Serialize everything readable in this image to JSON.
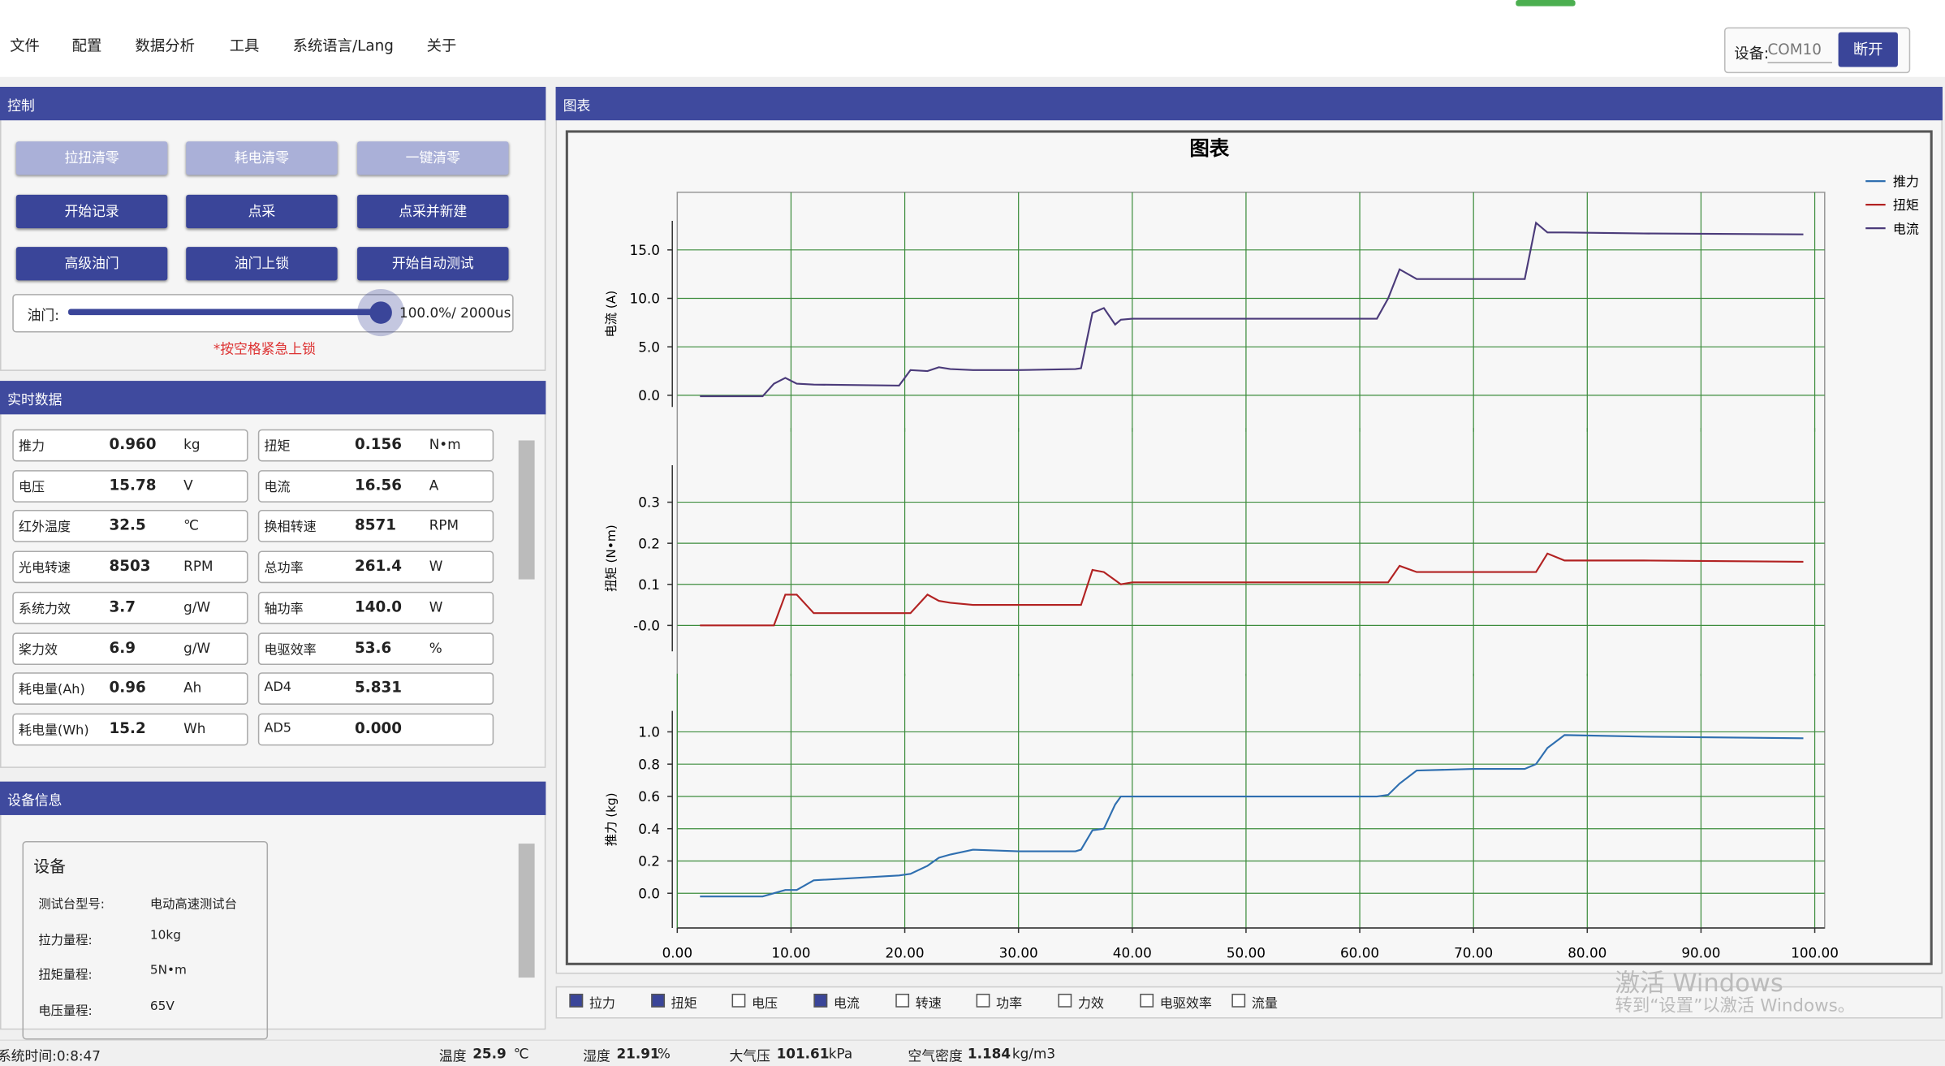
{
  "window": {
    "menu": [
      "文件",
      "配置",
      "数据分析",
      "工具",
      "系统语言/Lang",
      "关于"
    ],
    "device_label": "设备:",
    "port": "COM10",
    "disconnect": "断开"
  },
  "control": {
    "title": "控制",
    "buttons": [
      [
        {
          "text": "拉扭清零",
          "enabled": false
        },
        {
          "text": "耗电清零",
          "enabled": false
        },
        {
          "text": "一键清零",
          "enabled": false
        }
      ],
      [
        {
          "text": "开始记录",
          "enabled": true
        },
        {
          "text": "点采",
          "enabled": true
        },
        {
          "text": "点采并新建",
          "enabled": true
        }
      ],
      [
        {
          "text": "高级油门",
          "enabled": true
        },
        {
          "text": "油门上锁",
          "enabled": true
        },
        {
          "text": "开始自动测试",
          "enabled": true
        }
      ]
    ],
    "throttle_label": "油门:",
    "throttle_value": "100.0%/  2000us",
    "hint": "*按空格紧急上锁"
  },
  "realtime": {
    "title": "实时数据",
    "rows": [
      [
        {
          "label": "推力",
          "value": "0.960",
          "unit": "kg"
        },
        {
          "label": "扭矩",
          "value": "0.156",
          "unit": "N•m"
        }
      ],
      [
        {
          "label": "电压",
          "value": "15.78",
          "unit": "V"
        },
        {
          "label": "电流",
          "value": "16.56",
          "unit": "A"
        }
      ],
      [
        {
          "label": "红外温度",
          "value": "32.5",
          "unit": "℃"
        },
        {
          "label": "换相转速",
          "value": "8571",
          "unit": "RPM"
        }
      ],
      [
        {
          "label": "光电转速",
          "value": "8503",
          "unit": "RPM"
        },
        {
          "label": "总功率",
          "value": "261.4",
          "unit": "W"
        }
      ],
      [
        {
          "label": "系统力效",
          "value": "3.7",
          "unit": "g/W"
        },
        {
          "label": "轴功率",
          "value": "140.0",
          "unit": "W"
        }
      ],
      [
        {
          "label": "桨力效",
          "value": "6.9",
          "unit": "g/W"
        },
        {
          "label": "电驱效率",
          "value": "53.6",
          "unit": "%"
        }
      ],
      [
        {
          "label": "耗电量(Ah)",
          "value": "0.96",
          "unit": "Ah"
        },
        {
          "label": "AD4",
          "value": "5.831"
        }
      ],
      [
        {
          "label": "耗电量(Wh)",
          "value": "15.2",
          "unit": "Wh"
        },
        {
          "label": "AD5",
          "value": "0.000"
        }
      ]
    ]
  },
  "device_info": {
    "title": "设备信息",
    "group": "设备",
    "rows": [
      [
        "测试台型号:",
        "电动高速测试台"
      ],
      [
        "拉力量程:",
        "10kg"
      ],
      [
        "扭矩量程:",
        "5N•m"
      ],
      [
        "电压量程:",
        "65V"
      ]
    ]
  },
  "chart_panel": {
    "title": "图表"
  },
  "chart_data": [
    {
      "type": "line",
      "title": "图表",
      "ylabel": "电流 (A)",
      "x": [
        2,
        7.5,
        8.5,
        9.5,
        10.5,
        12,
        19.5,
        20.5,
        22,
        23,
        24,
        26,
        30,
        35,
        35.5,
        36.5,
        37.5,
        38.5,
        39,
        40,
        45,
        55,
        60,
        61.5,
        62.5,
        63.5,
        65,
        70,
        74.5,
        75.5,
        76.5,
        78,
        85,
        99
      ],
      "xlim": [
        0,
        100
      ],
      "xticks": [
        10,
        20,
        30,
        40,
        50,
        60,
        70,
        80,
        90,
        100
      ],
      "ylim": [
        -1.2,
        18
      ],
      "yticks": [
        {
          "value": 0,
          "label": "0.0"
        },
        {
          "value": 5,
          "label": "5.0"
        },
        {
          "value": 10,
          "label": "10.0"
        },
        {
          "value": 15,
          "label": "15.0"
        }
      ],
      "grid": true,
      "series": [
        {
          "name": "电流",
          "color": "#4b3b7a",
          "values": [
            -0.1,
            -0.1,
            1.2,
            1.8,
            1.2,
            1.1,
            1.0,
            2.6,
            2.5,
            2.9,
            2.7,
            2.6,
            2.6,
            2.7,
            2.8,
            8.5,
            9.0,
            7.3,
            7.8,
            7.9,
            7.9,
            7.9,
            7.9,
            7.9,
            10,
            13,
            12,
            12,
            12,
            17.8,
            16.8,
            16.8,
            16.7,
            16.6
          ]
        }
      ]
    },
    {
      "type": "line",
      "ylabel": "扭矩 (N•m)",
      "x": [
        2,
        7.5,
        8.5,
        9.5,
        10.5,
        12,
        19.5,
        20.5,
        22,
        23,
        24,
        26,
        30,
        35,
        35.5,
        36.5,
        37.5,
        38.5,
        39,
        40,
        45,
        55,
        60,
        61.5,
        62.5,
        63.5,
        65,
        70,
        74.5,
        75.5,
        76.5,
        78,
        85,
        99
      ],
      "xlim": [
        0,
        100
      ],
      "xticks": [
        10,
        20,
        30,
        40,
        50,
        60,
        70,
        80,
        90,
        100
      ],
      "ylim": [
        -0.063,
        0.39
      ],
      "yticks": [
        {
          "value": 0,
          "label": "-0.0"
        },
        0.1,
        0.2,
        0.3
      ],
      "grid": true,
      "series": [
        {
          "name": "扭矩",
          "color": "#b22222",
          "values": [
            0,
            0,
            0,
            0.075,
            0.075,
            0.03,
            0.03,
            0.03,
            0.075,
            0.06,
            0.055,
            0.05,
            0.05,
            0.05,
            0.05,
            0.135,
            0.13,
            0.11,
            0.1,
            0.105,
            0.105,
            0.105,
            0.105,
            0.105,
            0.105,
            0.145,
            0.13,
            0.13,
            0.13,
            0.13,
            0.175,
            0.158,
            0.158,
            0.155
          ]
        }
      ]
    },
    {
      "type": "line",
      "ylabel": "推力 (kg)",
      "x": [
        2,
        7.5,
        8.5,
        9.5,
        10.5,
        12,
        19.5,
        20.5,
        22,
        23,
        24,
        26,
        30,
        35,
        35.5,
        36.5,
        37.5,
        38.5,
        39,
        40,
        45,
        55,
        60,
        61.5,
        62.5,
        63.5,
        65,
        70,
        74.5,
        75.5,
        76.5,
        78,
        85,
        99
      ],
      "xlim": [
        0,
        100
      ],
      "xticks": [
        {
          "value": 0,
          "label": "0.00"
        },
        {
          "value": 10,
          "label": "10.00"
        },
        {
          "value": 20,
          "label": "20.00"
        },
        {
          "value": 30,
          "label": "30.00"
        },
        {
          "value": 40,
          "label": "40.00"
        },
        {
          "value": 50,
          "label": "50.00"
        },
        {
          "value": 60,
          "label": "60.00"
        },
        {
          "value": 70,
          "label": "70.00"
        },
        {
          "value": 80,
          "label": "80.00"
        },
        {
          "value": 90,
          "label": "90.00"
        },
        {
          "value": 100,
          "label": "100.00"
        }
      ],
      "ylim": [
        -0.215,
        1.13
      ],
      "yticks": [
        {
          "value": 0,
          "label": "0.0"
        },
        0.2,
        0.4,
        0.6,
        0.8,
        {
          "value": 1,
          "label": "1.0"
        }
      ],
      "grid": true,
      "series": [
        {
          "name": "推力",
          "color": "#2f6fb0",
          "values": [
            -0.02,
            -0.02,
            0,
            0.02,
            0.02,
            0.08,
            0.11,
            0.12,
            0.17,
            0.22,
            0.24,
            0.27,
            0.26,
            0.26,
            0.27,
            0.39,
            0.4,
            0.55,
            0.6,
            0.6,
            0.6,
            0.6,
            0.6,
            0.6,
            0.61,
            0.68,
            0.76,
            0.77,
            0.77,
            0.8,
            0.9,
            0.98,
            0.97,
            0.96
          ]
        }
      ]
    }
  ],
  "checkboxes": [
    {
      "label": "拉力",
      "checked": true
    },
    {
      "label": "扭矩",
      "checked": true
    },
    {
      "label": "电压",
      "checked": false
    },
    {
      "label": "电流",
      "checked": true
    },
    {
      "label": "转速",
      "checked": false
    },
    {
      "label": "功率",
      "checked": false
    },
    {
      "label": "力效",
      "checked": false
    },
    {
      "label": "电驱效率",
      "checked": false
    },
    {
      "label": "流量",
      "checked": false
    }
  ],
  "status": {
    "time": "系统时间:0:8:47",
    "items": [
      [
        "温度",
        "25.9",
        "℃"
      ],
      [
        "湿度",
        "21.91",
        "%"
      ],
      [
        "大气压",
        "101.61",
        "kPa"
      ],
      [
        "空气密度",
        "1.184",
        "kg/m3"
      ]
    ]
  },
  "watermark": [
    "激活 Windows",
    "转到“设置”以激活 Windows。"
  ]
}
